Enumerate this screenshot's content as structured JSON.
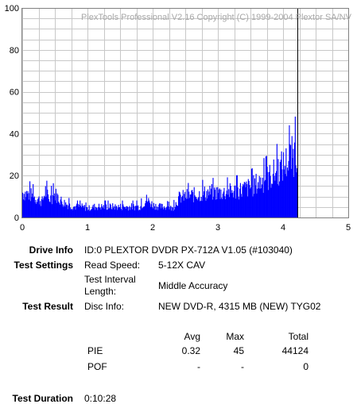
{
  "chart_data": {
    "type": "bar",
    "watermark": "PlexTools Professional V2.16 Copyright (C) 1999-2004 Plextor SA/NV",
    "xlim": [
      0,
      5
    ],
    "ylim": [
      0,
      100
    ],
    "x_ticks": [
      0,
      1,
      2,
      3,
      4,
      5
    ],
    "y_ticks": [
      0,
      20,
      40,
      60,
      80,
      100
    ],
    "grid": true,
    "end_marker_x": 4.22,
    "bar_color": "#0000ff",
    "profile": [
      [
        0.0,
        14
      ],
      [
        0.1,
        13
      ],
      [
        0.2,
        11
      ],
      [
        0.3,
        9
      ],
      [
        0.35,
        15
      ],
      [
        0.4,
        10
      ],
      [
        0.5,
        13
      ],
      [
        0.6,
        9
      ],
      [
        0.7,
        7
      ],
      [
        0.8,
        6
      ],
      [
        0.9,
        6
      ],
      [
        1.0,
        5
      ],
      [
        1.1,
        6
      ],
      [
        1.2,
        6
      ],
      [
        1.4,
        6
      ],
      [
        1.6,
        6
      ],
      [
        1.8,
        6
      ],
      [
        1.9,
        10
      ],
      [
        2.0,
        7
      ],
      [
        2.1,
        6
      ],
      [
        2.2,
        6
      ],
      [
        2.3,
        5
      ],
      [
        2.4,
        11
      ],
      [
        2.5,
        12
      ],
      [
        2.7,
        13
      ],
      [
        2.9,
        14
      ],
      [
        3.1,
        14
      ],
      [
        3.3,
        15
      ],
      [
        3.5,
        17
      ],
      [
        3.6,
        19
      ],
      [
        3.7,
        21
      ],
      [
        3.8,
        23
      ],
      [
        3.9,
        26
      ],
      [
        4.0,
        29
      ],
      [
        4.1,
        33
      ],
      [
        4.22,
        37
      ]
    ]
  },
  "info": {
    "drive_label": "Drive Info",
    "drive_value": "ID:0 PLEXTOR DVDR PX-712A V1.05 (#103040)",
    "settings_label": "Test Settings",
    "read_speed_key": "Read Speed:",
    "read_speed_value": "5-12X CAV",
    "interval_key_1": "Test Interval",
    "interval_key_2": "Length:",
    "interval_value": "Middle Accuracy",
    "result_label": "Test Result",
    "disc_key": "Disc Info:",
    "disc_value": "NEW DVD-R, 4315 MB (NEW) TYG02",
    "col_avg": "Avg",
    "col_max": "Max",
    "col_total": "Total",
    "pie_label": "PIE",
    "pie_avg": "0.32",
    "pie_max": "45",
    "pie_total": "44124",
    "pof_label": "POF",
    "pof_avg": "-",
    "pof_max": "-",
    "pof_total": "0",
    "duration_label": "Test Duration",
    "duration_value": "0:10:28"
  }
}
